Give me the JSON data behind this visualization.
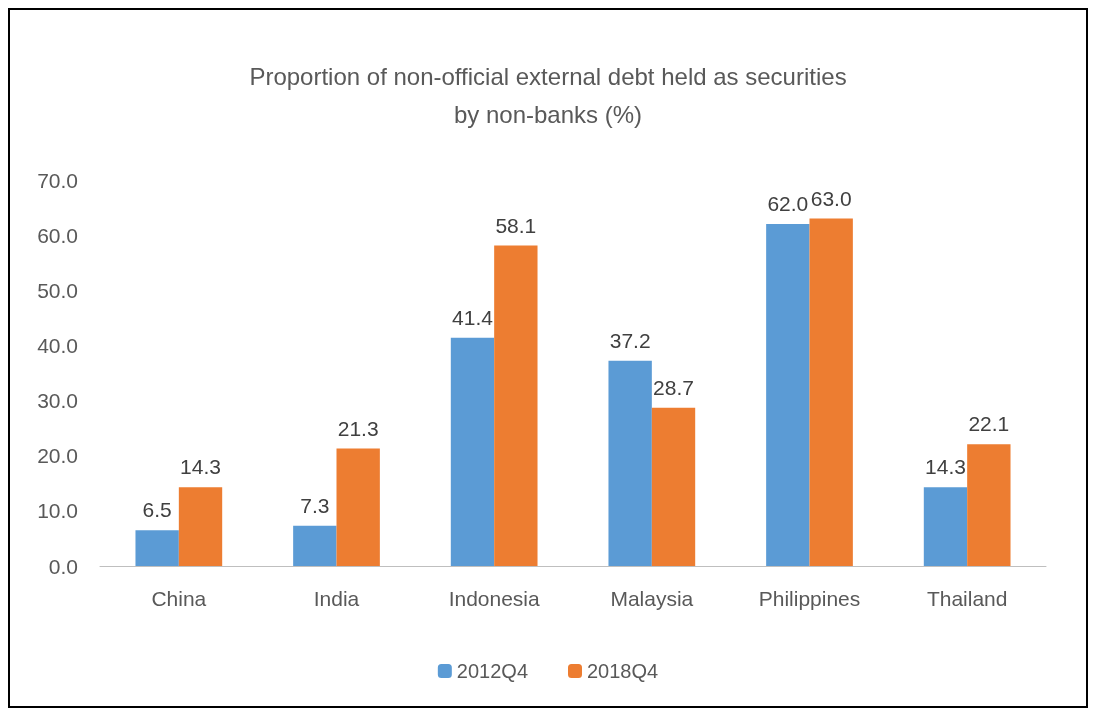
{
  "chart_data": {
    "type": "bar",
    "title": "Proportion of non-official external debt held as securities\nby non-banks (%)",
    "categories": [
      "China",
      "India",
      "Indonesia",
      "Malaysia",
      "Philippines",
      "Thailand"
    ],
    "series": [
      {
        "name": "2012Q4",
        "color": "#5b9bd5",
        "values": [
          6.5,
          7.3,
          41.4,
          37.2,
          62.0,
          14.3
        ],
        "value_labels": [
          "6.5",
          "7.3",
          "41.4",
          "37.2",
          "62.0",
          "14.3"
        ]
      },
      {
        "name": "2018Q4",
        "color": "#ed7d31",
        "values": [
          14.3,
          21.3,
          58.1,
          28.7,
          63.0,
          22.1
        ],
        "value_labels": [
          "14.3",
          "21.3",
          "58.1",
          "28.7",
          "63.0",
          "22.1"
        ]
      }
    ],
    "ylim": [
      0,
      70
    ],
    "yticks": [
      {
        "value": 0,
        "label": "0.0"
      },
      {
        "value": 10,
        "label": "10.0"
      },
      {
        "value": 20,
        "label": "20.0"
      },
      {
        "value": 30,
        "label": "30.0"
      },
      {
        "value": 40,
        "label": "40.0"
      },
      {
        "value": 50,
        "label": "50.0"
      },
      {
        "value": 60,
        "label": "60.0"
      },
      {
        "value": 70,
        "label": "70.0"
      }
    ],
    "grid": false,
    "legend": "bottom"
  }
}
